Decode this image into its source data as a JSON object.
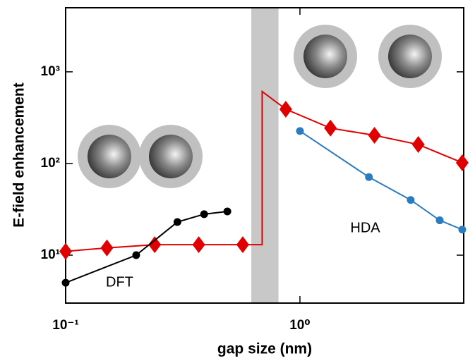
{
  "chart_data": {
    "type": "line",
    "xlabel": "gap size (nm)",
    "ylabel": "E-field enhancement",
    "xscale": "log",
    "yscale": "log",
    "xlim": [
      0.1,
      5
    ],
    "ylim": [
      3,
      5000
    ],
    "xticks": [
      {
        "value": 0.1,
        "label": "10⁻¹"
      },
      {
        "value": 1,
        "label": "10⁰"
      }
    ],
    "yticks": [
      {
        "value": 10,
        "label": "10¹"
      },
      {
        "value": 100,
        "label": "10²"
      },
      {
        "value": 1000,
        "label": "10³"
      }
    ],
    "band": {
      "x": [
        0.62,
        0.81
      ],
      "color": "#c8c8c8"
    },
    "series": [
      {
        "color": "#e00000",
        "marker": "diamond",
        "x": [
          0.1,
          0.15,
          0.24,
          0.37,
          0.57,
          0.69,
          0.69,
          0.87,
          1.35,
          2.08,
          3.2,
          4.93
        ],
        "values": [
          11,
          12,
          13,
          13,
          13,
          13,
          610,
          391,
          243,
          203,
          161,
          102
        ],
        "markers": [
          true,
          true,
          true,
          true,
          true,
          false,
          false,
          true,
          true,
          true,
          true,
          true
        ]
      },
      {
        "color": "#2b7bbf",
        "marker": "circle",
        "x": [
          1,
          1.97,
          2.97,
          3.95,
          4.93
        ],
        "values": [
          226,
          71,
          40,
          24,
          19
        ]
      },
      {
        "color": "#000000",
        "marker": "circle",
        "x": [
          0.1,
          0.2,
          0.3,
          0.39,
          0.49
        ],
        "values": [
          5,
          10,
          23,
          28,
          30
        ]
      }
    ],
    "annotations": [
      {
        "text": "DFT",
        "x": 0.17,
        "y": 5
      },
      {
        "text": "HDA",
        "x": 1.9,
        "y": 19.5
      }
    ]
  }
}
